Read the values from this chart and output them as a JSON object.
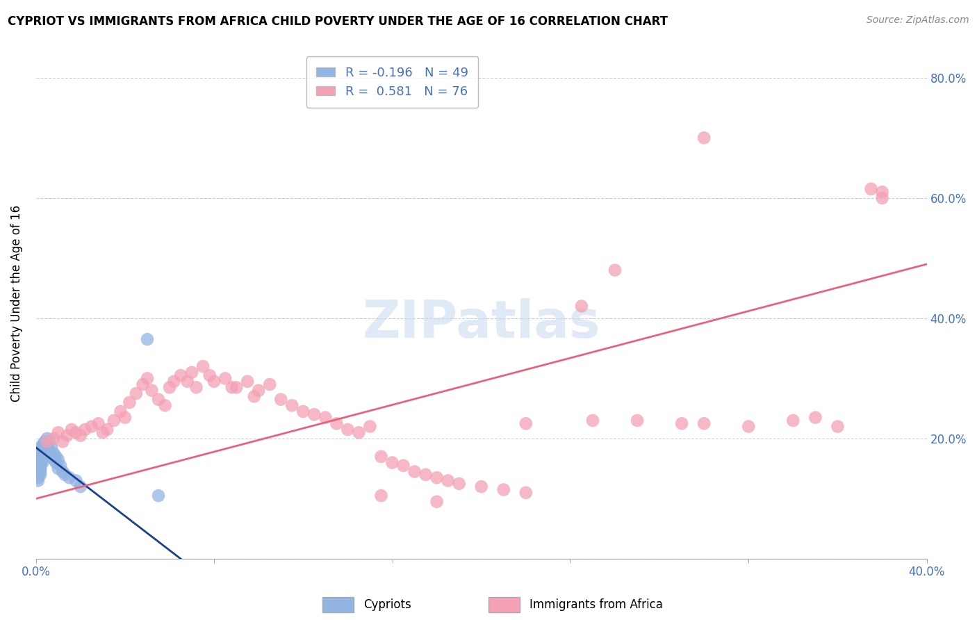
{
  "title": "CYPRIOT VS IMMIGRANTS FROM AFRICA CHILD POVERTY UNDER THE AGE OF 16 CORRELATION CHART",
  "source": "Source: ZipAtlas.com",
  "ylabel": "Child Poverty Under the Age of 16",
  "xlabel_cypriot": "Cypriots",
  "xlabel_africa": "Immigrants from Africa",
  "xmin": 0.0,
  "xmax": 0.4,
  "ymin": 0.0,
  "ymax": 0.85,
  "right_yticks": [
    0.0,
    0.2,
    0.4,
    0.6,
    0.8
  ],
  "right_ytick_labels": [
    "",
    "20.0%",
    "40.0%",
    "60.0%",
    "80.0%"
  ],
  "xtick_positions": [
    0.0,
    0.08,
    0.16,
    0.24,
    0.32,
    0.4
  ],
  "xtick_labels": [
    "0.0%",
    "",
    "",
    "",
    "",
    "40.0%"
  ],
  "watermark": "ZIPatlas",
  "legend_cypriot_R": "-0.196",
  "legend_cypriot_N": "49",
  "legend_africa_R": "0.581",
  "legend_africa_N": "76",
  "cypriot_color": "#92b4e3",
  "africa_color": "#f4a0b5",
  "cypriot_line_color": "#1a3f8f",
  "africa_line_color": "#e8637a",
  "background_color": "#ffffff",
  "grid_color": "#cccccc",
  "tick_color": "#4472c4",
  "cypriot_x": [
    0.001,
    0.001,
    0.001,
    0.001,
    0.001,
    0.001,
    0.001,
    0.001,
    0.001,
    0.001,
    0.002,
    0.002,
    0.002,
    0.002,
    0.002,
    0.002,
    0.002,
    0.002,
    0.002,
    0.002,
    0.003,
    0.003,
    0.003,
    0.003,
    0.003,
    0.003,
    0.004,
    0.004,
    0.004,
    0.005,
    0.005,
    0.006,
    0.006,
    0.007,
    0.007,
    0.008,
    0.008,
    0.009,
    0.009,
    0.01,
    0.01,
    0.011,
    0.012,
    0.013,
    0.015,
    0.018,
    0.02,
    0.05,
    0.055
  ],
  "cypriot_y": [
    0.175,
    0.17,
    0.165,
    0.16,
    0.155,
    0.15,
    0.145,
    0.14,
    0.135,
    0.13,
    0.185,
    0.18,
    0.175,
    0.17,
    0.165,
    0.16,
    0.155,
    0.15,
    0.145,
    0.14,
    0.19,
    0.185,
    0.18,
    0.175,
    0.165,
    0.16,
    0.195,
    0.185,
    0.175,
    0.2,
    0.185,
    0.195,
    0.18,
    0.185,
    0.17,
    0.175,
    0.165,
    0.17,
    0.16,
    0.165,
    0.15,
    0.155,
    0.145,
    0.14,
    0.135,
    0.13,
    0.12,
    0.365,
    0.105
  ],
  "africa_x": [
    0.005,
    0.008,
    0.01,
    0.012,
    0.014,
    0.016,
    0.018,
    0.02,
    0.022,
    0.025,
    0.028,
    0.03,
    0.032,
    0.035,
    0.038,
    0.04,
    0.042,
    0.045,
    0.048,
    0.05,
    0.052,
    0.055,
    0.058,
    0.06,
    0.062,
    0.065,
    0.068,
    0.07,
    0.072,
    0.075,
    0.078,
    0.08,
    0.085,
    0.088,
    0.09,
    0.095,
    0.098,
    0.1,
    0.105,
    0.11,
    0.115,
    0.12,
    0.125,
    0.13,
    0.135,
    0.14,
    0.145,
    0.15,
    0.155,
    0.16,
    0.165,
    0.17,
    0.175,
    0.18,
    0.185,
    0.19,
    0.2,
    0.21,
    0.22,
    0.245,
    0.25,
    0.27,
    0.29,
    0.3,
    0.32,
    0.34,
    0.35,
    0.36,
    0.375,
    0.38,
    0.155,
    0.22,
    0.18,
    0.26,
    0.3,
    0.38
  ],
  "africa_y": [
    0.195,
    0.2,
    0.21,
    0.195,
    0.205,
    0.215,
    0.21,
    0.205,
    0.215,
    0.22,
    0.225,
    0.21,
    0.215,
    0.23,
    0.245,
    0.235,
    0.26,
    0.275,
    0.29,
    0.3,
    0.28,
    0.265,
    0.255,
    0.285,
    0.295,
    0.305,
    0.295,
    0.31,
    0.285,
    0.32,
    0.305,
    0.295,
    0.3,
    0.285,
    0.285,
    0.295,
    0.27,
    0.28,
    0.29,
    0.265,
    0.255,
    0.245,
    0.24,
    0.235,
    0.225,
    0.215,
    0.21,
    0.22,
    0.17,
    0.16,
    0.155,
    0.145,
    0.14,
    0.135,
    0.13,
    0.125,
    0.12,
    0.115,
    0.11,
    0.42,
    0.23,
    0.23,
    0.225,
    0.225,
    0.22,
    0.23,
    0.235,
    0.22,
    0.615,
    0.6,
    0.105,
    0.225,
    0.095,
    0.48,
    0.7,
    0.61
  ],
  "cypriot_line_x": [
    0.0,
    0.065
  ],
  "cypriot_line_y": [
    0.185,
    0.0
  ],
  "africa_line_x": [
    0.0,
    0.4
  ],
  "africa_line_y": [
    0.1,
    0.49
  ]
}
